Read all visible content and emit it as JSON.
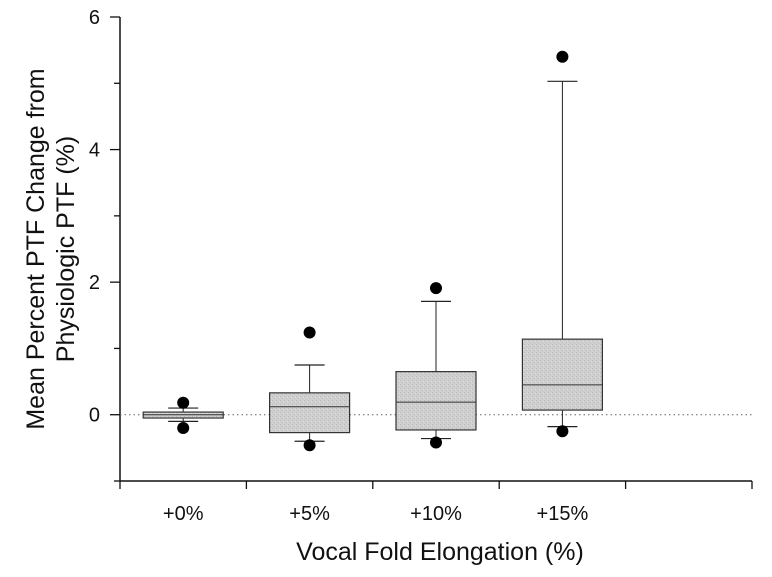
{
  "chart_data": {
    "type": "box",
    "categories": [
      "+0%",
      "+5%",
      "+10%",
      "+15%"
    ],
    "xlabel": "Vocal Fold Elongation (%)",
    "ylabel_lines": [
      "Mean Percent PTF Change from",
      "Physiologic PTF (%)"
    ],
    "ylim": [
      -1,
      6
    ],
    "yticks": [
      0,
      2,
      4,
      6
    ],
    "reference_line": {
      "y": 0,
      "style": "dotted"
    },
    "grid": false,
    "box_fill": "#cfcfcf",
    "boxes": [
      {
        "category": "+0%",
        "whisker_low": -0.1,
        "q1": -0.05,
        "median": 0.0,
        "q3": 0.04,
        "whisker_high": 0.1,
        "outliers": [
          0.18,
          -0.2
        ]
      },
      {
        "category": "+5%",
        "whisker_low": -0.4,
        "q1": -0.27,
        "median": 0.12,
        "q3": 0.33,
        "whisker_high": 0.75,
        "outliers": [
          1.24,
          -0.46
        ]
      },
      {
        "category": "+10%",
        "whisker_low": -0.36,
        "q1": -0.23,
        "median": 0.19,
        "q3": 0.65,
        "whisker_high": 1.71,
        "outliers": [
          1.91,
          -0.42
        ]
      },
      {
        "category": "+15%",
        "whisker_low": -0.18,
        "q1": 0.07,
        "median": 0.45,
        "q3": 1.14,
        "whisker_high": 5.03,
        "outliers": [
          5.4,
          -0.25
        ]
      }
    ]
  }
}
